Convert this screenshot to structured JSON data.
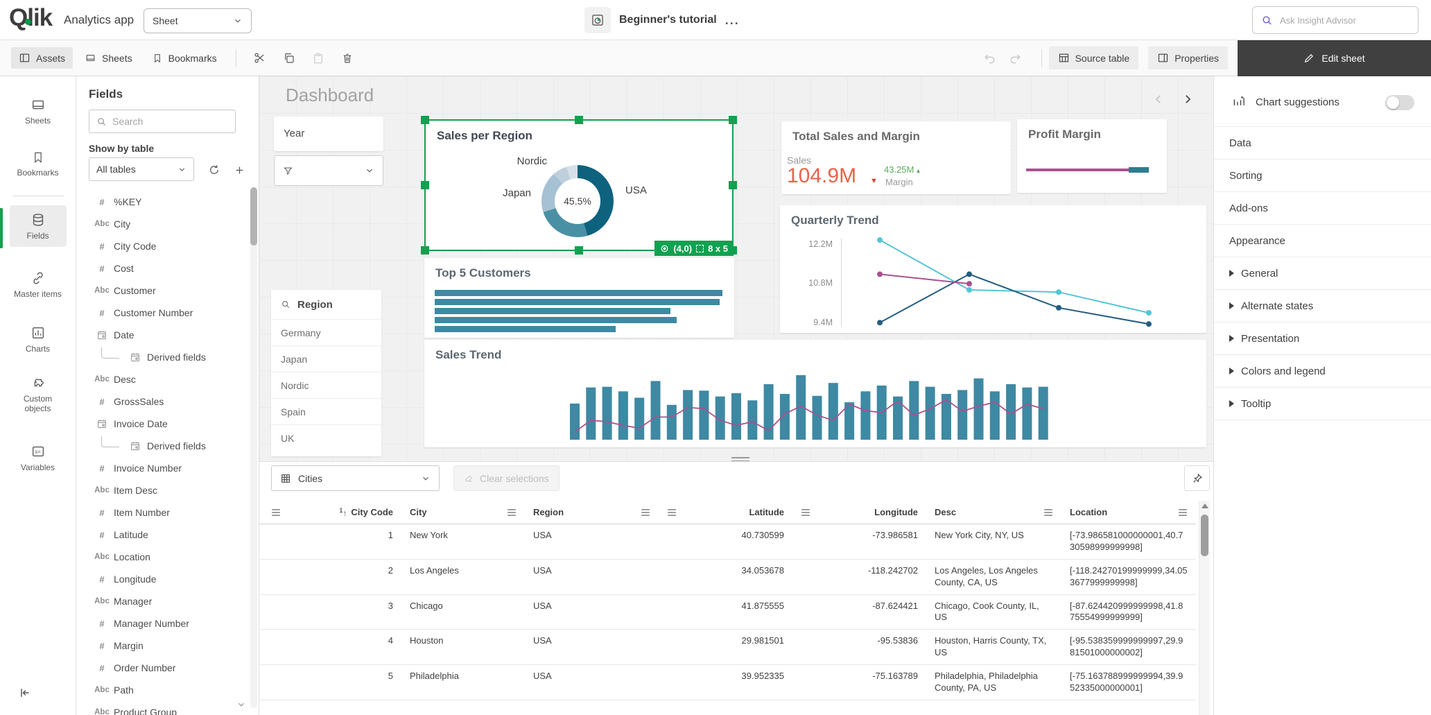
{
  "topbar": {
    "brand": "Qlik",
    "app_title": "Analytics app",
    "sheet_selector": "Sheet",
    "doc_title": "Beginner's tutorial",
    "more_menu": "...",
    "insight_placeholder": "Ask Insight Advisor"
  },
  "toolbar": {
    "assets": "Assets",
    "sheets": "Sheets",
    "bookmarks": "Bookmarks",
    "source_table": "Source table",
    "properties": "Properties",
    "edit_sheet": "Edit sheet"
  },
  "left_nav": {
    "items": [
      {
        "id": "sheets",
        "label": "Sheets",
        "icon": "sheet",
        "active": false
      },
      {
        "id": "bookmarks",
        "label": "Bookmarks",
        "icon": "bookmark",
        "active": false
      },
      {
        "id": "fields",
        "label": "Fields",
        "icon": "database",
        "active": true
      },
      {
        "id": "master-items",
        "label": "Master items",
        "icon": "link",
        "active": false
      },
      {
        "id": "charts",
        "label": "Charts",
        "icon": "chart",
        "active": false
      },
      {
        "id": "custom-objects",
        "label": "Custom objects",
        "icon": "puzzle",
        "active": false
      },
      {
        "id": "variables",
        "label": "Variables",
        "icon": "variable",
        "active": false
      }
    ]
  },
  "fields_panel": {
    "title": "Fields",
    "search_placeholder": "Search",
    "show_by_table": "Show by table",
    "table_select": "All tables",
    "fields": [
      {
        "name": "%KEY",
        "type": "numeric"
      },
      {
        "name": "City",
        "type": "text"
      },
      {
        "name": "City Code",
        "type": "numeric"
      },
      {
        "name": "Cost",
        "type": "numeric"
      },
      {
        "name": "Customer",
        "type": "text"
      },
      {
        "name": "Customer Number",
        "type": "numeric"
      },
      {
        "name": "Date",
        "type": "date"
      },
      {
        "name": "Derived fields",
        "type": "date",
        "indent": true
      },
      {
        "name": "Desc",
        "type": "text"
      },
      {
        "name": "GrossSales",
        "type": "numeric"
      },
      {
        "name": "Invoice Date",
        "type": "date"
      },
      {
        "name": "Derived fields",
        "type": "date",
        "indent": true
      },
      {
        "name": "Invoice Number",
        "type": "numeric"
      },
      {
        "name": "Item Desc",
        "type": "text"
      },
      {
        "name": "Item Number",
        "type": "numeric"
      },
      {
        "name": "Latitude",
        "type": "numeric"
      },
      {
        "name": "Location",
        "type": "text"
      },
      {
        "name": "Longitude",
        "type": "numeric"
      },
      {
        "name": "Manager",
        "type": "text"
      },
      {
        "name": "Manager Number",
        "type": "numeric"
      },
      {
        "name": "Margin",
        "type": "numeric"
      },
      {
        "name": "Order Number",
        "type": "numeric"
      },
      {
        "name": "Path",
        "type": "text"
      },
      {
        "name": "Product Group",
        "type": "text"
      }
    ]
  },
  "sheet": {
    "title": "Dashboard",
    "year_filter_label": "Year",
    "region_filter": {
      "label": "Region",
      "values": [
        "Germany",
        "Japan",
        "Nordic",
        "Spain",
        "UK"
      ]
    },
    "selection_badge": {
      "position": "(4,0)",
      "size": "8 x 5"
    }
  },
  "chart_data": [
    {
      "id": "sales-per-region",
      "type": "pie",
      "title": "Sales per Region",
      "center_label": "45.5%",
      "slices": [
        {
          "label": "USA",
          "value": 45.5,
          "color": "#0e627d"
        },
        {
          "label": "",
          "value": 24.5,
          "color": "#4a90a4"
        },
        {
          "label": "Japan",
          "value": 18.5,
          "color": "#a6c1d3"
        },
        {
          "label": "Nordic",
          "value": 6.5,
          "color": "#becfdc"
        },
        {
          "label": "",
          "value": 5.0,
          "color": "#d6e0e8"
        }
      ]
    },
    {
      "id": "total-sales-and-margin",
      "type": "kpi",
      "title": "Total Sales and Margin",
      "primary_label": "Sales",
      "primary_value": "104.9M",
      "primary_trend": "down",
      "secondary_value": "43.25M",
      "secondary_label": "Margin",
      "secondary_trend": "up"
    },
    {
      "id": "profit-margin",
      "type": "gauge",
      "title": "Profit Margin",
      "segments": [
        {
          "color": "#a9518e",
          "fraction": 0.78
        },
        {
          "color": "#2e7d8c",
          "fraction": 0.15
        }
      ]
    },
    {
      "id": "quarterly-trend",
      "type": "line",
      "title": "Quarterly Trend",
      "y_ticks": [
        "12.2M",
        "10.8M",
        "9.4M"
      ],
      "y_range": [
        9.4,
        12.2
      ],
      "x_points": 4,
      "series": [
        {
          "name": "series-cyan",
          "color": "#53c6d6",
          "values": [
            12.37,
            10.59,
            10.51,
            9.77
          ]
        },
        {
          "name": "series-navy",
          "color": "#235d80",
          "values": [
            9.42,
            11.15,
            9.95,
            9.37
          ]
        },
        {
          "name": "series-magenta",
          "color": "#a9518e",
          "values": [
            11.15,
            10.81
          ]
        }
      ]
    },
    {
      "id": "top-5-customers",
      "type": "bar-horizontal",
      "title": "Top 5 Customers",
      "values": [
        1.0,
        0.99,
        0.82,
        0.84,
        0.63
      ],
      "bar_color": "#3e89a3"
    },
    {
      "id": "sales-trend",
      "type": "combo",
      "title": "Sales Trend",
      "bar_color": "#3e89a3",
      "line_color": "#a9518e",
      "bar_values": [
        56,
        81,
        82,
        75,
        65,
        91,
        54,
        77,
        76,
        67,
        72,
        61,
        86,
        71,
        100,
        68,
        88,
        58,
        75,
        84,
        67,
        91,
        82,
        71,
        77,
        95,
        75,
        86,
        81,
        82
      ],
      "line_values": [
        12,
        30,
        28,
        22,
        18,
        35,
        35,
        50,
        48,
        30,
        22,
        28,
        14,
        40,
        52,
        38,
        30,
        55,
        45,
        42,
        60,
        38,
        48,
        62,
        44,
        52,
        58,
        40,
        55,
        48
      ]
    }
  ],
  "selections_bar": {
    "selector": "Cities",
    "clear_button": "Clear selections"
  },
  "data_table": {
    "columns": [
      "City Code",
      "City",
      "Region",
      "Latitude",
      "Longitude",
      "Desc",
      "Location"
    ],
    "rows": [
      {
        "city_code": "1",
        "city": "New York",
        "region": "USA",
        "latitude": "40.730599",
        "longitude": "-73.986581",
        "desc": "New York City, NY, US",
        "location": "[-73.986581000000001,40.730598999999998]"
      },
      {
        "city_code": "2",
        "city": "Los Angeles",
        "region": "USA",
        "latitude": "34.053678",
        "longitude": "-118.242702",
        "desc": "Los Angeles, Los Angeles County, CA, US",
        "location": "[-118.24270199999999,34.053677999999998]"
      },
      {
        "city_code": "3",
        "city": "Chicago",
        "region": "USA",
        "latitude": "41.875555",
        "longitude": "-87.624421",
        "desc": "Chicago, Cook County, IL, US",
        "location": "[-87.624420999999998,41.875554999999999]"
      },
      {
        "city_code": "4",
        "city": "Houston",
        "region": "USA",
        "latitude": "29.981501",
        "longitude": "-95.53836",
        "desc": "Houston, Harris County, TX, US",
        "location": "[-95.538359999999997,29.981501000000002]"
      },
      {
        "city_code": "5",
        "city": "Philadelphia",
        "region": "USA",
        "latitude": "39.952335",
        "longitude": "-75.163789",
        "desc": "Philadelphia, Philadelphia County, PA, US",
        "location": "[-75.163788999999994,39.952335000000001]"
      }
    ]
  },
  "properties_panel": {
    "chart_suggestions_label": "Chart suggestions",
    "sections": [
      "Data",
      "Sorting",
      "Add-ons",
      "Appearance"
    ],
    "appearance_items": [
      "General",
      "Alternate states",
      "Presentation",
      "Colors and legend",
      "Tooltip"
    ]
  },
  "colors": {
    "accent_green": "#12a150",
    "teal": "#3e89a3",
    "kpi_value": "#e8624a",
    "kpi_margin": "#57ad5c",
    "magenta": "#a9518e",
    "cyan": "#53c6d6",
    "navy": "#235d80"
  }
}
